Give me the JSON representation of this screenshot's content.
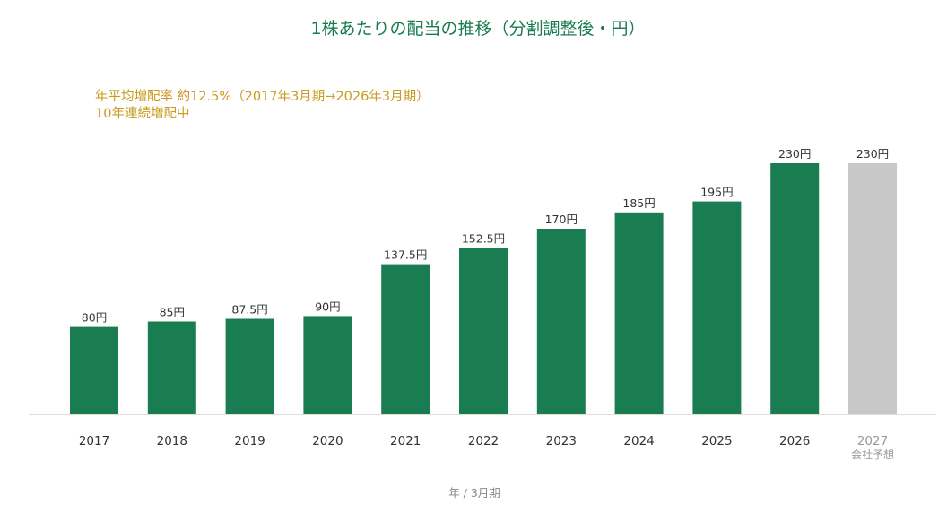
{
  "chart_data": {
    "type": "bar",
    "title": "1株あたりの配当の推移（分割調整後・円）",
    "annotations": [
      "年平均増配率 約12.5%（2017年3月期→2026年3月期）",
      "10年連続増配中"
    ],
    "categories": [
      "2017",
      "2018",
      "2019",
      "2020",
      "2021",
      "2022",
      "2023",
      "2024",
      "2025",
      "2026",
      "2027"
    ],
    "category_sublabels": [
      "",
      "",
      "",
      "",
      "",
      "",
      "",
      "",
      "",
      "",
      "会社予想"
    ],
    "values": [
      80,
      85,
      87.5,
      90,
      137.5,
      152.5,
      170,
      185,
      195,
      230,
      230
    ],
    "value_labels": [
      "80円",
      "85円",
      "87.5円",
      "90円",
      "137.5円",
      "152.5円",
      "170円",
      "185円",
      "195円",
      "230円",
      "230円"
    ],
    "forecast": [
      false,
      false,
      false,
      false,
      false,
      false,
      false,
      false,
      false,
      false,
      true
    ],
    "xlabel": "年 / 3月期",
    "ylabel": "",
    "ylim": [
      0,
      230
    ],
    "grid": false,
    "colors": {
      "actual": "#1a7d52",
      "forecast": "#c8c8c8",
      "title": "#1a7a50",
      "note": "#c99a1e"
    }
  }
}
